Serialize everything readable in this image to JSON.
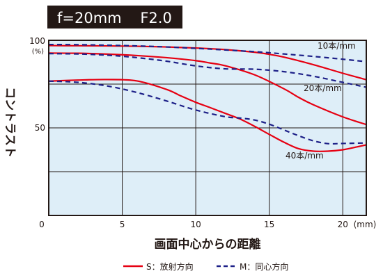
{
  "colors": {
    "plot_background": "#deeef8",
    "title_background": "#231815",
    "title_text": "#ffffff",
    "solid_series": "#e60012",
    "dashed_series": "#1d2088",
    "grid": "#231815"
  },
  "chart_data": {
    "type": "line",
    "title": "f=20mm    F2.0",
    "xlabel": "画面中心からの距離",
    "xunit": "(mm)",
    "ylabel": "コントラスト",
    "yunit": "(%)",
    "xlim": [
      0,
      21.6
    ],
    "ylim": [
      0,
      100
    ],
    "x_ticks": [
      0,
      5,
      10,
      15,
      20
    ],
    "y_ticks": [
      50,
      100
    ],
    "grid": true,
    "gridlines_y": [
      25,
      50,
      75
    ],
    "gridlines_x": [
      5,
      10,
      15,
      20
    ],
    "legend": [
      {
        "label": "S：放射方向",
        "style": "solid"
      },
      {
        "label": "M：同心方向",
        "style": "dashed"
      }
    ],
    "annotations": [
      "10本/mm",
      "20本/mm",
      "40本/mm"
    ],
    "series": [
      {
        "group": "S",
        "frequency_label": "10本/mm",
        "style": "solid",
        "x": [
          0,
          2,
          4,
          6,
          8,
          10,
          12,
          14,
          15,
          16,
          18,
          20,
          21.6
        ],
        "y": [
          97,
          96.9,
          96.8,
          96.6,
          96.2,
          95.6,
          94.7,
          93.2,
          92,
          90.4,
          86.1,
          81.2,
          77.5
        ]
      },
      {
        "group": "M",
        "frequency_label": "10本/mm",
        "style": "dashed",
        "x": [
          0,
          2,
          4,
          6,
          8,
          10,
          12,
          14,
          15,
          16,
          18,
          20,
          21.6
        ],
        "y": [
          97.6,
          97.5,
          97.2,
          96.8,
          96.2,
          95.4,
          94.5,
          93.5,
          92.9,
          92.2,
          90.8,
          89.2,
          87.8
        ]
      },
      {
        "group": "S",
        "frequency_label": "20本/mm",
        "style": "solid",
        "x": [
          0,
          2,
          4,
          6,
          8,
          10,
          11,
          12,
          14,
          16,
          17,
          18,
          20,
          21.6
        ],
        "y": [
          92.7,
          92.6,
          92.1,
          91.3,
          90.1,
          88.4,
          87,
          85.5,
          80.3,
          72.3,
          67.4,
          63.2,
          56.3,
          51.9
        ]
      },
      {
        "group": "M",
        "frequency_label": "20本/mm",
        "style": "dashed",
        "x": [
          0,
          2,
          4,
          6,
          8,
          10,
          12,
          14,
          16,
          18,
          20,
          21.6
        ],
        "y": [
          92.4,
          92.2,
          91.5,
          90.1,
          88.1,
          85.4,
          83.7,
          83.5,
          82.1,
          79.5,
          76,
          73.2
        ]
      },
      {
        "group": "S",
        "frequency_label": "40本/mm",
        "style": "solid",
        "x": [
          0,
          2,
          4,
          6,
          8,
          9,
          10,
          11,
          12,
          13,
          14,
          15,
          16,
          17,
          18,
          19,
          20,
          21,
          21.6
        ],
        "y": [
          76.7,
          77.3,
          77.6,
          76.8,
          72,
          68.2,
          64.6,
          61.5,
          58.3,
          55.1,
          50.9,
          46.3,
          41.8,
          38.1,
          36.7,
          36.7,
          37.5,
          39.2,
          40.3
        ]
      },
      {
        "group": "M",
        "frequency_label": "40本/mm",
        "style": "dashed",
        "x": [
          0,
          2,
          4,
          6,
          8,
          10,
          12,
          13,
          14,
          15,
          16,
          17,
          18,
          19,
          20,
          21.6
        ],
        "y": [
          76.7,
          76,
          73.9,
          70.2,
          65.4,
          60.2,
          56.4,
          55.6,
          54.5,
          52.1,
          48.8,
          45.5,
          42.6,
          41,
          41.1,
          41.4
        ]
      }
    ]
  }
}
